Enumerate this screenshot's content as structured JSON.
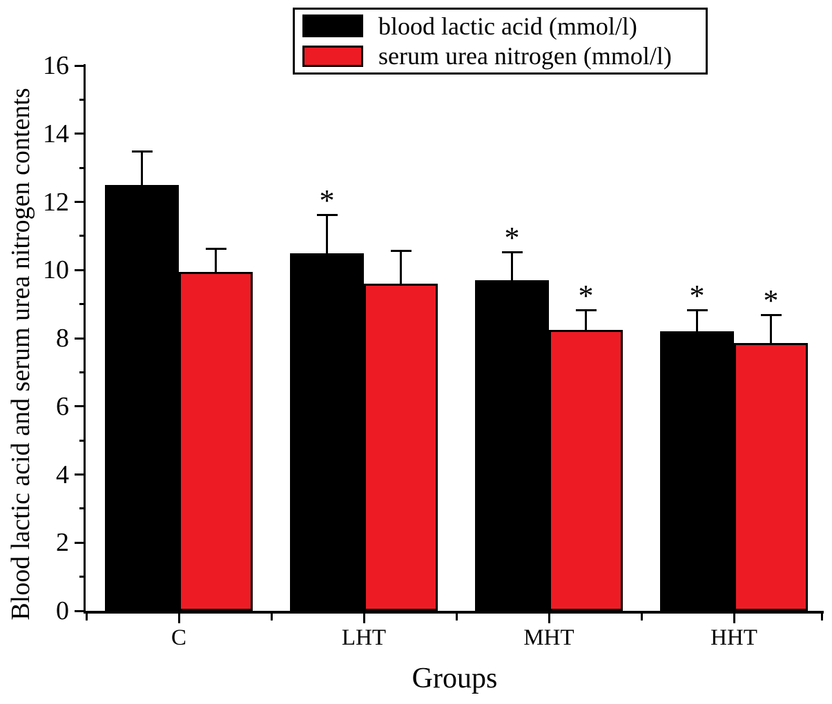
{
  "chart_data": {
    "type": "bar",
    "title": "",
    "xlabel": "Groups",
    "ylabel": "Blood lactic acid and serum urea nitrogen contents",
    "categories": [
      "C",
      "LHT",
      "MHT",
      "HHT"
    ],
    "ylim": [
      0,
      16
    ],
    "ytick_step_major": 2,
    "ytick_step_minor": 1,
    "ytick_labels": [
      "0",
      "2",
      "4",
      "6",
      "8",
      "10",
      "12",
      "14",
      "16"
    ],
    "grid": false,
    "legend_position": "top-center",
    "background_color": "#ffffff",
    "axis_color": "#000000",
    "series": [
      {
        "name": "blood lactic acid (mmol/l)",
        "color": "#000000",
        "values": [
          12.5,
          10.5,
          9.7,
          8.2
        ],
        "error_plus": [
          1.0,
          1.15,
          0.85,
          0.65
        ],
        "significance": [
          "",
          "*",
          "*",
          "*"
        ]
      },
      {
        "name": "serum urea nitrogen (mmol/l)",
        "color": "#ed1c24",
        "values": [
          9.95,
          9.6,
          8.25,
          7.85
        ],
        "error_plus": [
          0.7,
          1.0,
          0.6,
          0.85
        ],
        "significance": [
          "",
          "",
          "*",
          "*"
        ]
      }
    ]
  }
}
